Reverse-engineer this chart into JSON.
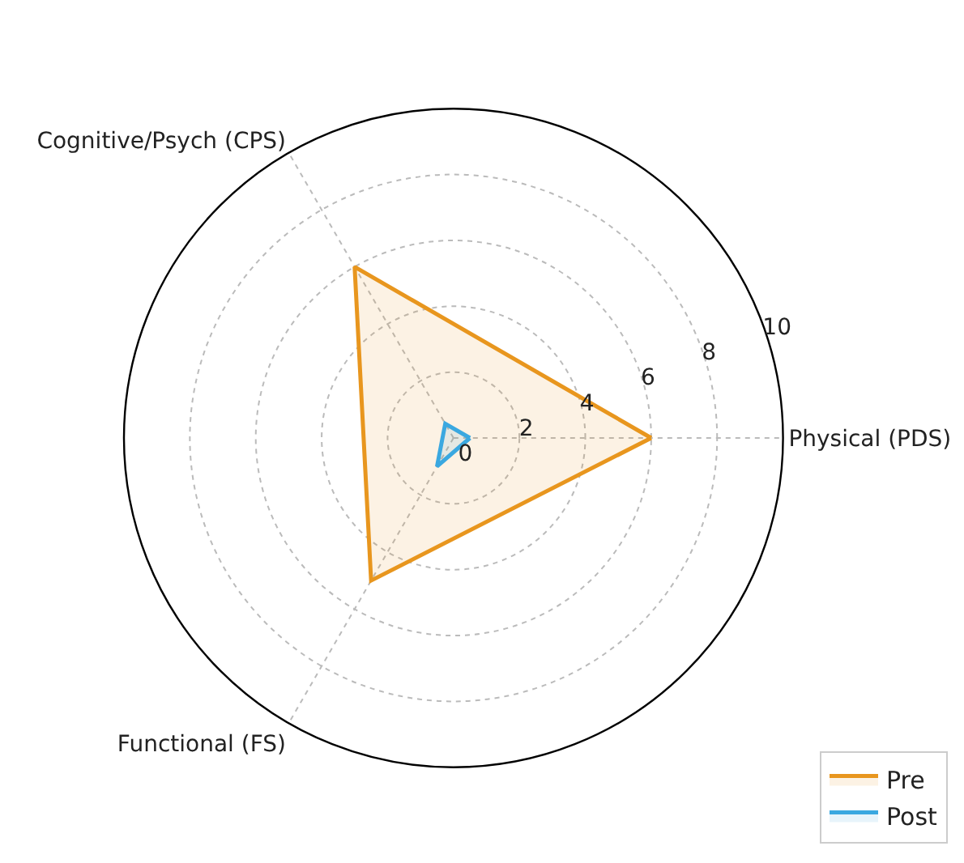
{
  "chart_data": {
    "type": "radar",
    "categories": [
      "Physical (PDS)",
      "Functional (FS)",
      "Cognitive/Psych (CPS)"
    ],
    "series": [
      {
        "name": "Pre",
        "color": "#e8961e",
        "values": [
          6,
          5,
          6
        ]
      },
      {
        "name": "Post",
        "color": "#3aa8e0",
        "values": [
          0.5,
          1,
          0.5
        ]
      }
    ],
    "ylim": [
      0,
      10
    ],
    "yticks": [
      0,
      2,
      4,
      6,
      8,
      10
    ],
    "grid": true,
    "legend": "bottom right",
    "marker": "none",
    "line_style": "solid"
  }
}
